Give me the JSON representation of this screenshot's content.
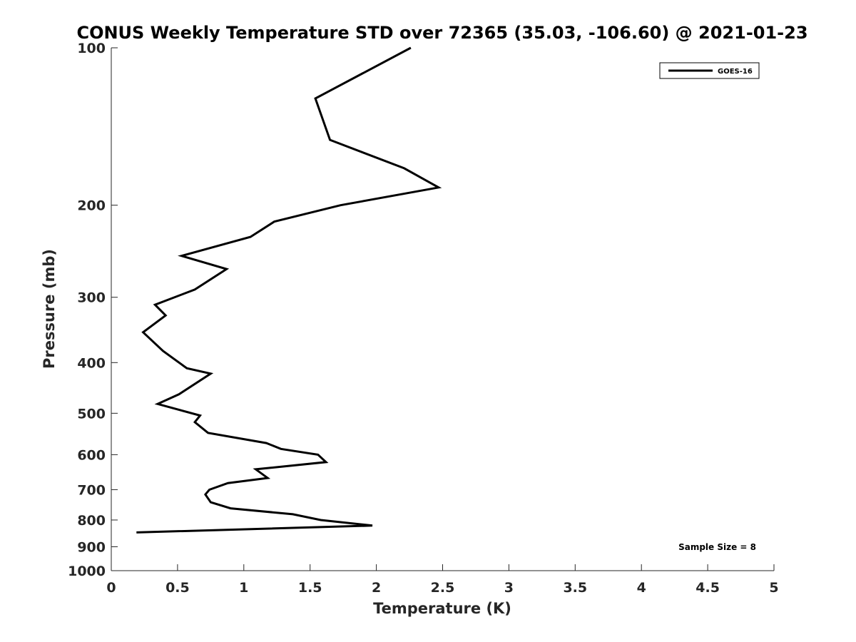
{
  "chart_data": {
    "type": "line",
    "title": "CONUS Weekly Temperature STD over 72365 (35.03, -106.60) @ 2021-01-23",
    "xlabel": "Temperature (K)",
    "ylabel": "Pressure (mb)",
    "xlim": [
      0,
      5
    ],
    "ylim": [
      100,
      1000
    ],
    "y_scale": "log",
    "y_reversed": true,
    "x_ticks": [
      0,
      0.5,
      1,
      1.5,
      2,
      2.5,
      3,
      3.5,
      4,
      4.5,
      5
    ],
    "x_tick_labels": [
      "0",
      "0.5",
      "1",
      "1.5",
      "2",
      "2.5",
      "3",
      "3.5",
      "4",
      "4.5",
      "5"
    ],
    "y_ticks": [
      100,
      200,
      300,
      400,
      500,
      600,
      700,
      800,
      900,
      1000
    ],
    "y_tick_labels": [
      "100",
      "200",
      "300",
      "400",
      "500",
      "600",
      "700",
      "800",
      "900",
      "1000"
    ],
    "grid": false,
    "legend_position": "top-right",
    "line_color": "#000000",
    "series": [
      {
        "name": "GOES-16",
        "points": [
          {
            "x": 2.26,
            "y": 100
          },
          {
            "x": 1.54,
            "y": 125
          },
          {
            "x": 1.65,
            "y": 150
          },
          {
            "x": 2.21,
            "y": 170
          },
          {
            "x": 2.47,
            "y": 185
          },
          {
            "x": 1.73,
            "y": 200
          },
          {
            "x": 1.23,
            "y": 215
          },
          {
            "x": 1.05,
            "y": 230
          },
          {
            "x": 0.53,
            "y": 250
          },
          {
            "x": 0.87,
            "y": 265
          },
          {
            "x": 0.63,
            "y": 290
          },
          {
            "x": 0.33,
            "y": 310
          },
          {
            "x": 0.41,
            "y": 325
          },
          {
            "x": 0.24,
            "y": 350
          },
          {
            "x": 0.39,
            "y": 380
          },
          {
            "x": 0.57,
            "y": 410
          },
          {
            "x": 0.75,
            "y": 420
          },
          {
            "x": 0.51,
            "y": 460
          },
          {
            "x": 0.35,
            "y": 480
          },
          {
            "x": 0.67,
            "y": 505
          },
          {
            "x": 0.63,
            "y": 520
          },
          {
            "x": 0.73,
            "y": 545
          },
          {
            "x": 1.17,
            "y": 570
          },
          {
            "x": 1.28,
            "y": 585
          },
          {
            "x": 1.56,
            "y": 600
          },
          {
            "x": 1.62,
            "y": 620
          },
          {
            "x": 1.09,
            "y": 640
          },
          {
            "x": 1.18,
            "y": 665
          },
          {
            "x": 0.88,
            "y": 680
          },
          {
            "x": 0.74,
            "y": 700
          },
          {
            "x": 0.71,
            "y": 715
          },
          {
            "x": 0.75,
            "y": 740
          },
          {
            "x": 0.9,
            "y": 760
          },
          {
            "x": 1.37,
            "y": 780
          },
          {
            "x": 1.58,
            "y": 800
          },
          {
            "x": 1.97,
            "y": 820
          },
          {
            "x": 0.19,
            "y": 845
          }
        ]
      }
    ],
    "annotation": "Sample Size = 8"
  }
}
